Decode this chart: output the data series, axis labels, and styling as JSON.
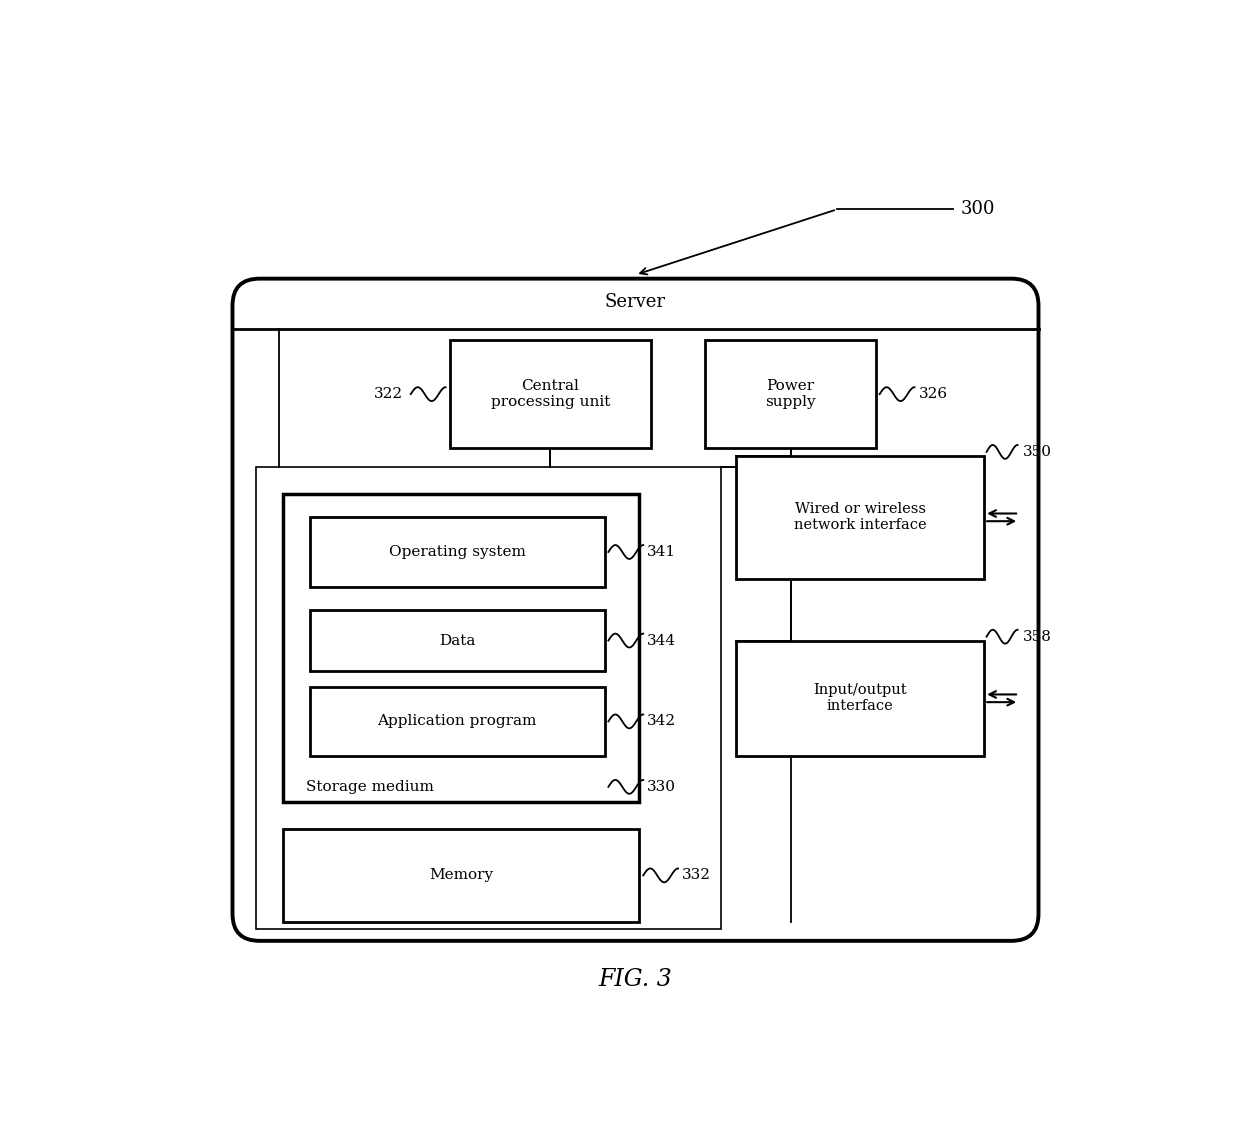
{
  "fig_label": "FIG. 3",
  "ref_300": "300",
  "server_label": "Server",
  "cpu_label": "Central\nprocessing unit",
  "cpu_ref": "322",
  "power_label": "Power\nsupply",
  "power_ref": "326",
  "storage_label": "Storage medium",
  "storage_ref": "330",
  "os_label": "Operating system",
  "os_ref": "341",
  "data_label": "Data",
  "data_ref": "344",
  "app_label": "Application program",
  "app_ref": "342",
  "memory_label": "Memory",
  "memory_ref": "332",
  "network_label": "Wired or wireless\nnetwork interface",
  "network_ref": "350",
  "io_label": "Input/output\ninterface",
  "io_ref": "358",
  "bg_color": "#ffffff",
  "box_edge_color": "#000000",
  "text_color": "#000000"
}
